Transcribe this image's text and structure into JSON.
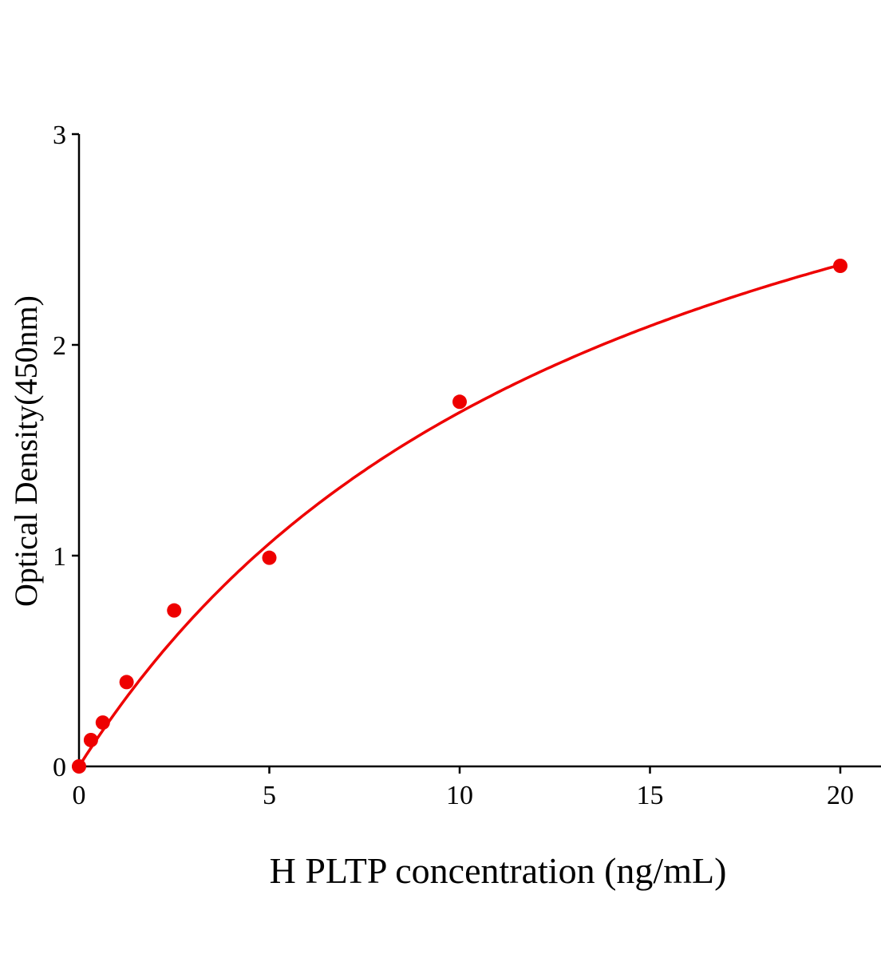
{
  "chart_data": {
    "type": "scatter",
    "title": "",
    "xlabel": "H PLTP concentration (ng/mL)",
    "ylabel": "Optical Density(450nm)",
    "xlim": [
      0,
      21.1
    ],
    "ylim": [
      0,
      3
    ],
    "xticks": [
      0,
      5,
      10,
      15,
      20
    ],
    "yticks": [
      0,
      1,
      2,
      3
    ],
    "xtick_labels": [
      "0",
      "5",
      "10",
      "15",
      "20"
    ],
    "ytick_labels": [
      "0",
      "1",
      "2",
      "3"
    ],
    "grid": false,
    "legend": "none",
    "fit_curve": true,
    "color": "#ee0000",
    "points": [
      {
        "x": 0,
        "y": 0
      },
      {
        "x": 0.3125,
        "y": 0.125
      },
      {
        "x": 0.625,
        "y": 0.208
      },
      {
        "x": 1.25,
        "y": 0.4
      },
      {
        "x": 2.5,
        "y": 0.74
      },
      {
        "x": 5,
        "y": 0.99
      },
      {
        "x": 10,
        "y": 1.73
      },
      {
        "x": 20,
        "y": 2.375
      }
    ]
  }
}
